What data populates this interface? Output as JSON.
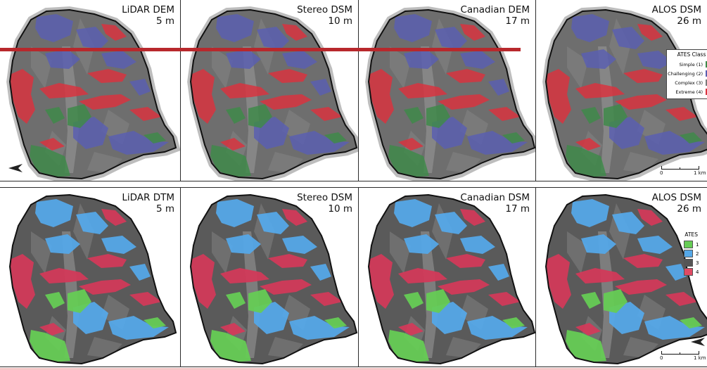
{
  "panels": [
    {
      "row": 0,
      "title": "LiDAR DEM",
      "res": "5 m"
    },
    {
      "row": 0,
      "title": "Stereo DSM",
      "res": "10 m"
    },
    {
      "row": 0,
      "title": "Canadian DEM",
      "res": "17 m"
    },
    {
      "row": 0,
      "title": "ALOS DSM",
      "res": "26 m"
    },
    {
      "row": 1,
      "title": "LiDAR DTM",
      "res": "5 m"
    },
    {
      "row": 1,
      "title": "Stereo DSM",
      "res": "10 m"
    },
    {
      "row": 1,
      "title": "Canadian DSM",
      "res": "17 m"
    },
    {
      "row": 1,
      "title": "ALOS DSM",
      "res": "26 m"
    }
  ],
  "legend_top": {
    "title": "ATES Class",
    "items": [
      {
        "label": "Simple (1)",
        "color": "#3f8a4a"
      },
      {
        "label": "Challenging (2)",
        "color": "#5a5fb0"
      },
      {
        "label": "Complex (3)",
        "color": "#7a7a7a"
      },
      {
        "label": "Extreme (4)",
        "color": "#d8343f"
      }
    ]
  },
  "legend_bottom": {
    "title": "ATES",
    "items": [
      {
        "label": "1",
        "color": "#66cc55"
      },
      {
        "label": "2",
        "color": "#55a8e8"
      },
      {
        "label": "3",
        "color": "#555555"
      },
      {
        "label": "4",
        "color": "#e04a63"
      }
    ]
  },
  "scale_top": {
    "zero": "0",
    "max": "1 km"
  },
  "scale_bottom": {
    "zero": "0",
    "max": "1 km"
  },
  "colors": {
    "top_simple": "#3f8a4a",
    "top_challenging": "#5a5fb0",
    "top_complex": "#6e6e6e",
    "top_extreme": "#d8343f",
    "bottom_simple": "#66cc55",
    "bottom_challenging": "#55a8e8",
    "bottom_complex": "#5a5a5a",
    "bottom_extreme": "#d23a5a",
    "highlight_line": "#b8282c"
  }
}
